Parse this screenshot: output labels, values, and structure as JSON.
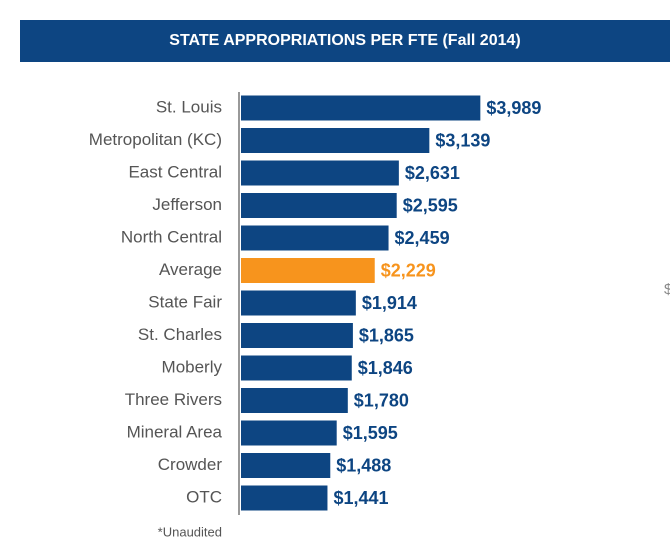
{
  "chart_data": {
    "type": "barh",
    "title": "STATE APPROPRIATIONS PER FTE (Fall 2014)",
    "categories": [
      "St. Louis",
      "Metropolitan (KC)",
      "East Central",
      "Jefferson",
      "North Central",
      "Average",
      "State Fair",
      "St. Charles",
      "Moberly",
      "Three Rivers",
      "Mineral Area",
      "Crowder",
      "OTC"
    ],
    "values": [
      3989,
      3139,
      2631,
      2595,
      2459,
      2229,
      1914,
      1865,
      1846,
      1780,
      1595,
      1488,
      1441
    ],
    "value_labels": [
      "$3,989",
      "$3,139",
      "$2,631",
      "$2,595",
      "$2,459",
      "$2,229",
      "$1,914",
      "$1,865",
      "$1,846",
      "$1,780",
      "$1,595",
      "$1,488",
      "$1,441"
    ],
    "colors": [
      "#0d4582",
      "#0d4582",
      "#0d4582",
      "#0d4582",
      "#0d4582",
      "#f7941d",
      "#0d4582",
      "#0d4582",
      "#0d4582",
      "#0d4582",
      "#0d4582",
      "#0d4582",
      "#0d4582"
    ],
    "xlim": [
      0,
      4000
    ],
    "footnote": "*Unaudited",
    "side_note": "$"
  }
}
